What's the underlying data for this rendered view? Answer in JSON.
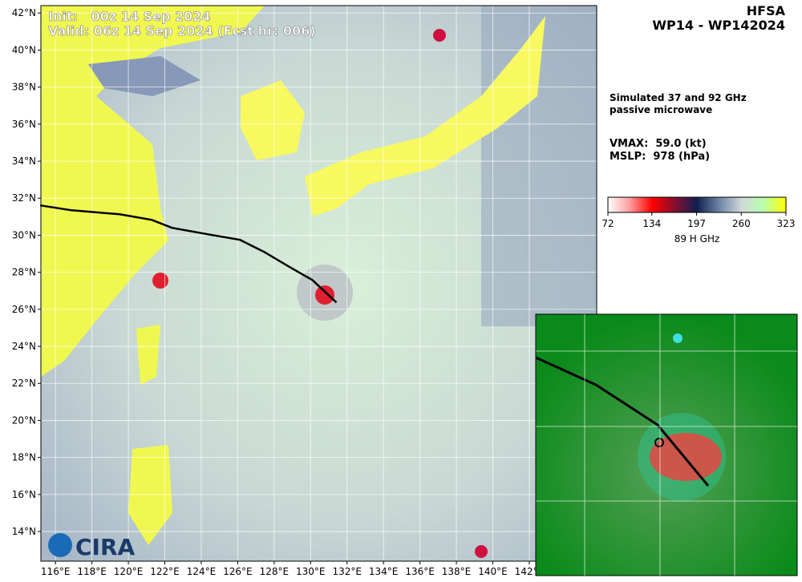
{
  "header": {
    "init": "Init:   00z 14 Sep 2024",
    "valid": "Valid: 06z 14 Sep 2024 (Fcst hr: 006)",
    "model": "HFSA",
    "storm": "WP14 - WP142024"
  },
  "info": {
    "line1": "Simulated 37 and 92 GHz",
    "line2": "passive microwave",
    "vmax": "VMAX:  59.0 (kt)",
    "mslp": "MSLP:  978 (hPa)"
  },
  "colorbar": {
    "label": "89 H GHz",
    "range": [
      72,
      323
    ],
    "ticks": [
      72,
      134,
      197,
      260,
      323
    ]
  },
  "map": {
    "lon_range": [
      115.2,
      145.7
    ],
    "lat_range": [
      12.4,
      42.4
    ],
    "lat_ticks": [
      {
        "value": 14,
        "label": "14°N"
      },
      {
        "value": 16,
        "label": "16°N"
      },
      {
        "value": 18,
        "label": "18°N"
      },
      {
        "value": 20,
        "label": "20°N"
      },
      {
        "value": 22,
        "label": "22°N"
      },
      {
        "value": 24,
        "label": "24°N"
      },
      {
        "value": 26,
        "label": "26°N"
      },
      {
        "value": 28,
        "label": "28°N"
      },
      {
        "value": 30,
        "label": "30°N"
      },
      {
        "value": 32,
        "label": "32°N"
      },
      {
        "value": 34,
        "label": "34°N"
      },
      {
        "value": 36,
        "label": "36°N"
      },
      {
        "value": 38,
        "label": "38°N"
      },
      {
        "value": 40,
        "label": "40°N"
      },
      {
        "value": 42,
        "label": "42°N"
      }
    ],
    "lon_ticks": [
      {
        "value": 116,
        "label": "116°E"
      },
      {
        "value": 118,
        "label": "118°E"
      },
      {
        "value": 120,
        "label": "120°E"
      },
      {
        "value": 122,
        "label": "122°E"
      },
      {
        "value": 124,
        "label": "124°E"
      },
      {
        "value": 126,
        "label": "126°E"
      },
      {
        "value": 128,
        "label": "128°E"
      },
      {
        "value": 130,
        "label": "130°E"
      },
      {
        "value": 132,
        "label": "132°E"
      },
      {
        "value": 134,
        "label": "134°E"
      },
      {
        "value": 136,
        "label": "136°E"
      },
      {
        "value": 138,
        "label": "138°E"
      },
      {
        "value": 140,
        "label": "140°E"
      },
      {
        "value": 142,
        "label": "142°E"
      }
    ],
    "track": {
      "lon": [
        115.16,
        116.88,
        119.52,
        121.29,
        122.39,
        124.37,
        126.13,
        127.45,
        128.78,
        130.1,
        131.42
      ],
      "lat": [
        31.61,
        31.35,
        31.13,
        30.83,
        30.4,
        30.05,
        29.75,
        29.1,
        28.32,
        27.58,
        26.37
      ]
    }
  },
  "logo": "CIRA"
}
